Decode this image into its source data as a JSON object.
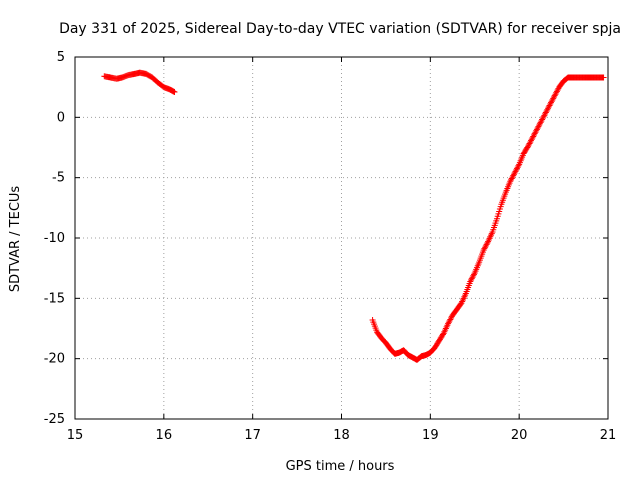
{
  "chart_data": {
    "type": "scatter",
    "title": "Day 331 of 2025, Sidereal Day-to-day VTEC variation (SDTVAR) for receiver spja",
    "xlabel": "GPS time / hours",
    "ylabel": "SDTVAR / TECUs",
    "xlim": [
      15,
      21
    ],
    "ylim": [
      -25,
      5
    ],
    "x_ticks": [
      15,
      16,
      17,
      18,
      19,
      20,
      21
    ],
    "y_ticks": [
      5,
      0,
      -5,
      -10,
      -15,
      -20,
      -25
    ],
    "x_tick_labels": [
      "15",
      "16",
      "17",
      "18",
      "19",
      "20",
      "21"
    ],
    "y_tick_labels": [
      "5",
      "0",
      "-5",
      "-10",
      "-15",
      "-20",
      "-25"
    ],
    "grid": true,
    "marker": "+",
    "series": [
      {
        "name": "SDTVAR",
        "color": "#ff0000",
        "segments": [
          {
            "x": [
              15.33,
              15.4,
              15.47,
              15.53,
              15.6,
              15.67,
              15.73,
              15.8,
              15.87,
              15.93,
              16.0,
              16.07,
              16.12
            ],
            "y": [
              3.4,
              3.3,
              3.2,
              3.3,
              3.5,
              3.6,
              3.7,
              3.6,
              3.3,
              2.9,
              2.5,
              2.3,
              2.1
            ]
          },
          {
            "x": [
              18.35,
              18.4,
              18.45,
              18.5,
              18.55,
              18.6,
              18.65,
              18.7,
              18.75,
              18.8,
              18.85,
              18.9,
              18.95,
              19.0,
              19.05,
              19.1,
              19.15,
              19.2,
              19.25,
              19.3,
              19.35,
              19.4,
              19.45,
              19.5,
              19.55,
              19.6,
              19.65,
              19.7,
              19.75,
              19.8,
              19.85,
              19.9,
              19.95,
              20.0,
              20.05,
              20.1,
              20.15,
              20.2,
              20.25,
              20.3,
              20.35,
              20.4,
              20.45,
              20.5,
              20.55,
              20.6,
              20.65,
              20.7,
              20.75,
              20.8,
              20.85,
              20.9,
              20.95
            ],
            "y": [
              -16.8,
              -17.8,
              -18.3,
              -18.7,
              -19.2,
              -19.6,
              -19.5,
              -19.3,
              -19.7,
              -19.9,
              -20.1,
              -19.8,
              -19.7,
              -19.5,
              -19.1,
              -18.5,
              -17.9,
              -17.1,
              -16.4,
              -15.9,
              -15.4,
              -14.6,
              -13.6,
              -12.9,
              -12.0,
              -11.0,
              -10.3,
              -9.5,
              -8.4,
              -7.2,
              -6.2,
              -5.3,
              -4.6,
              -3.9,
              -3.0,
              -2.4,
              -1.7,
              -1.0,
              -0.3,
              0.4,
              1.1,
              1.8,
              2.5,
              3.0,
              3.3,
              3.3,
              3.3,
              3.3,
              3.3,
              3.3,
              3.3,
              3.3,
              3.3
            ]
          }
        ]
      }
    ]
  }
}
